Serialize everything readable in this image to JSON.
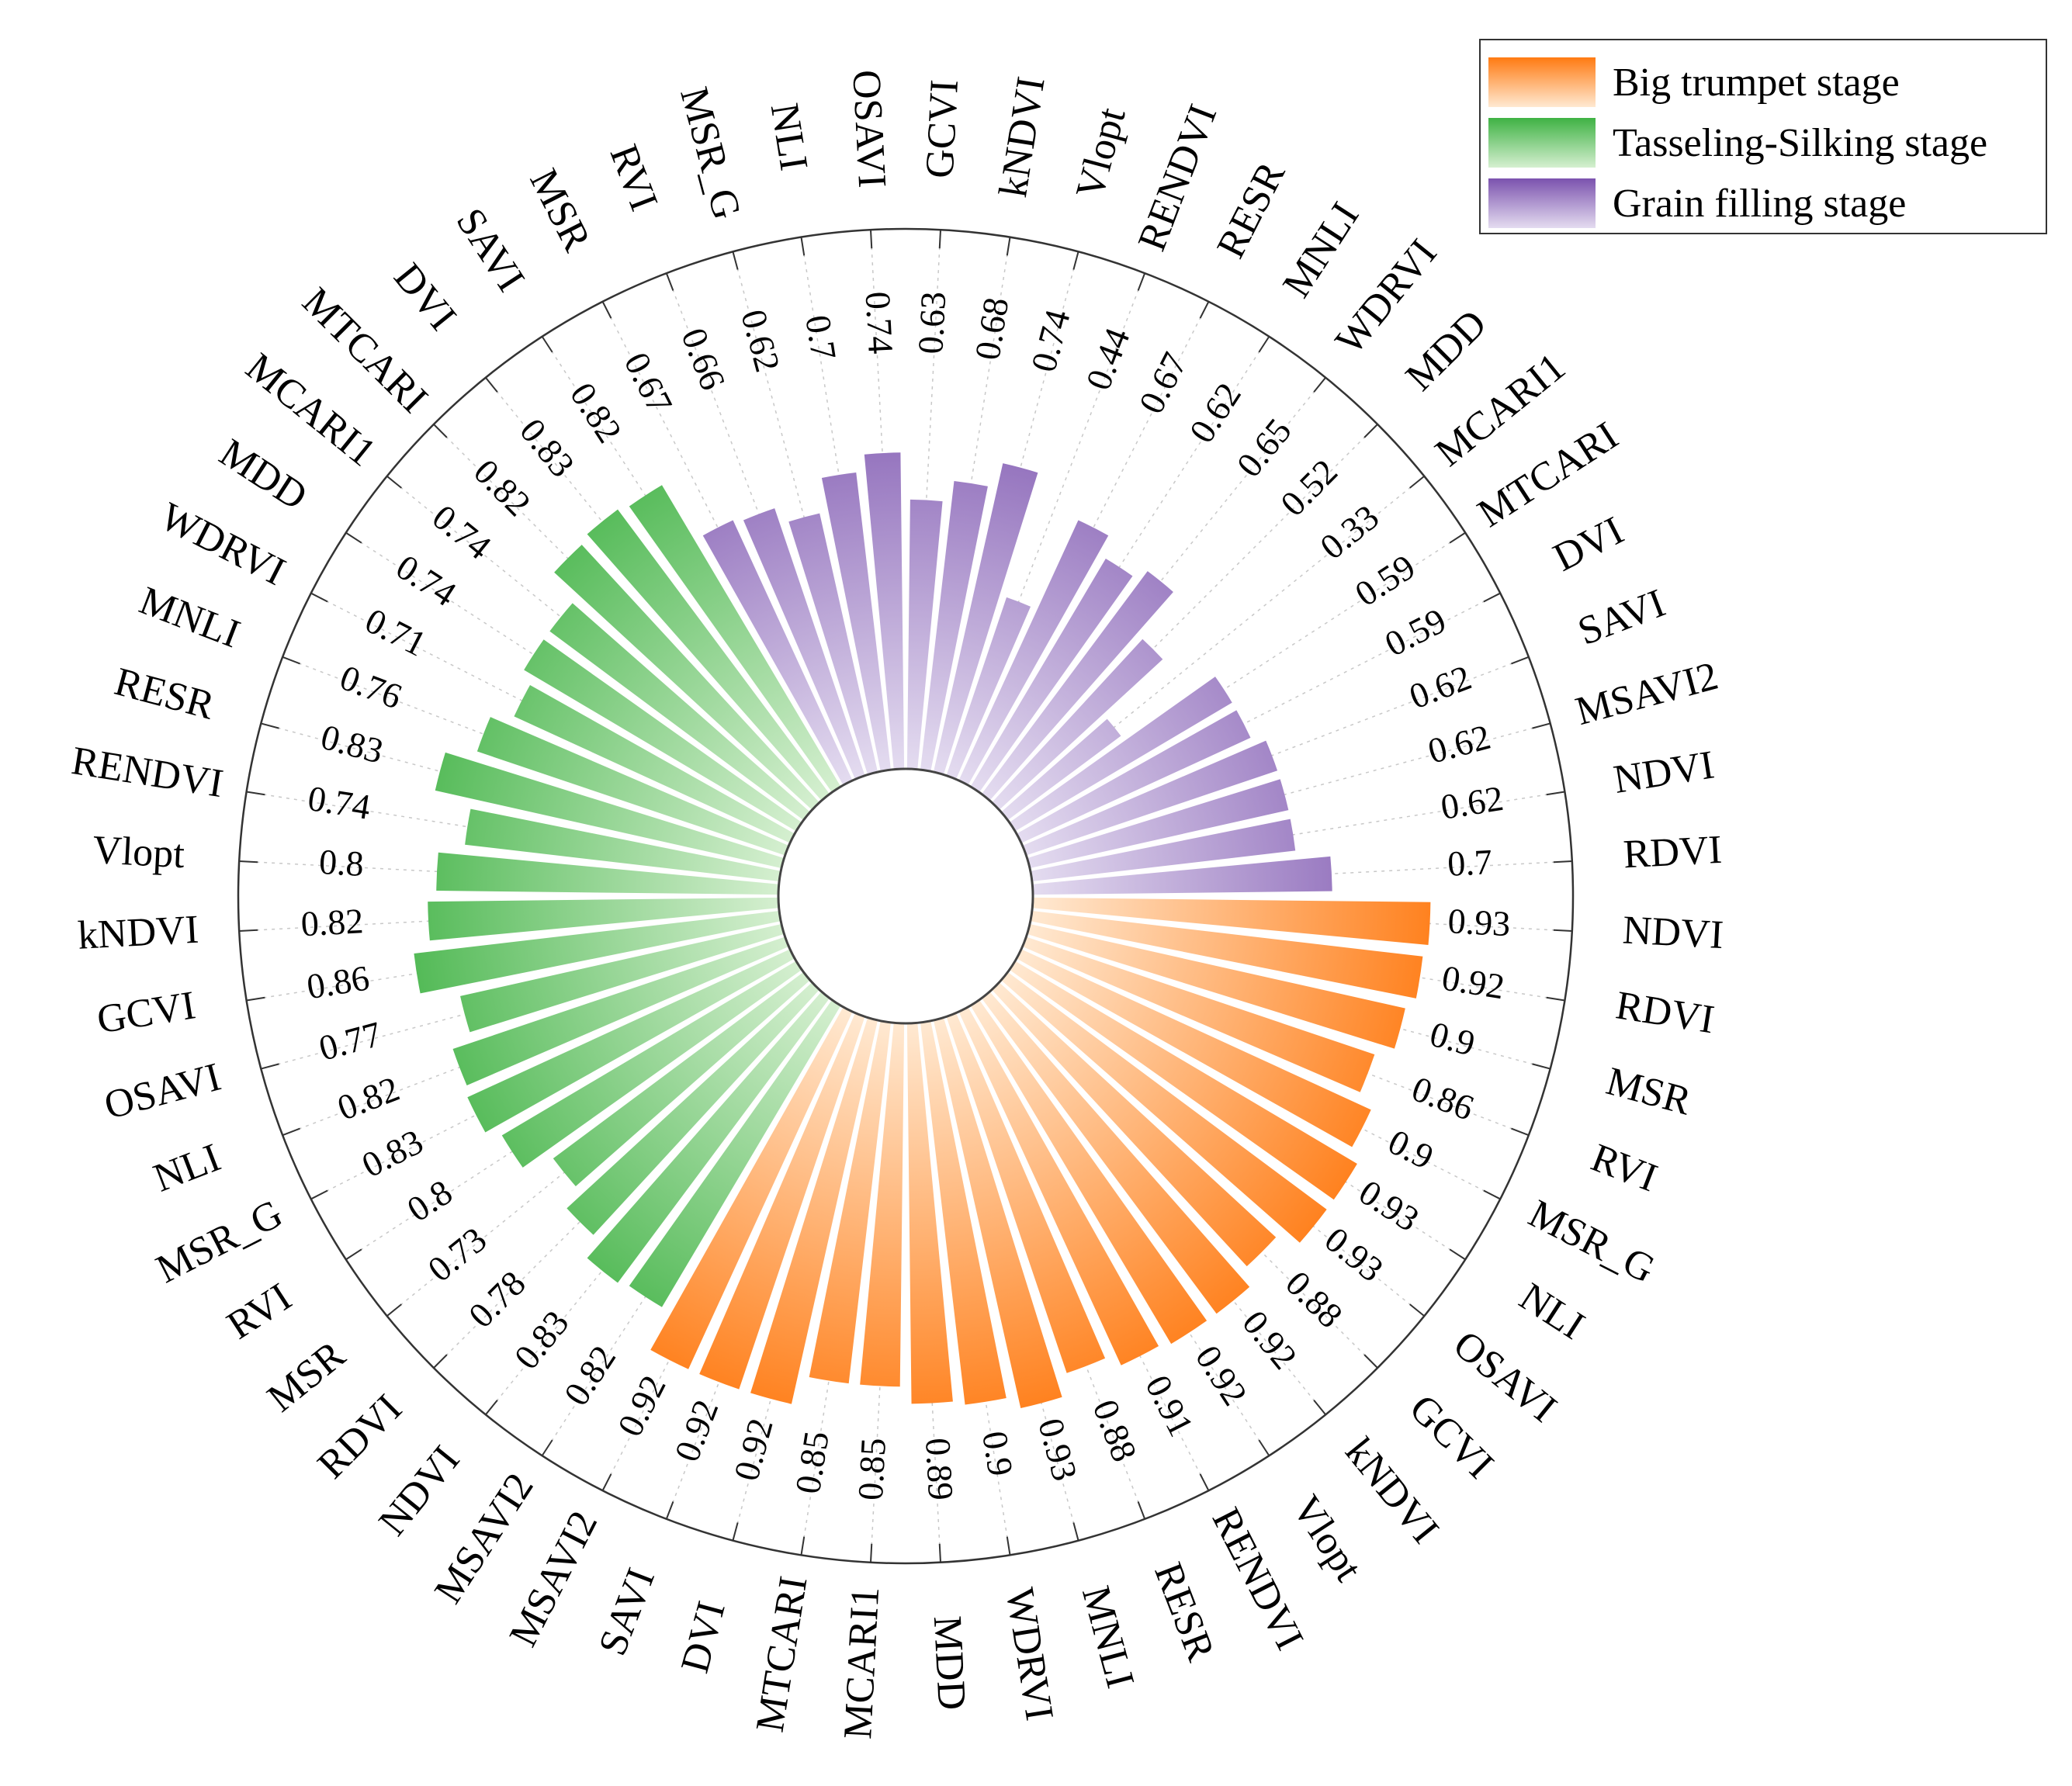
{
  "chart_data": {
    "type": "radial-bar",
    "title": "",
    "ylim": [
      0,
      1
    ],
    "legend_position": "top-right",
    "series": [
      {
        "name": "Big trumpet stage",
        "color_dark": "#FF7A12",
        "color_light": "#FFE9D2",
        "categories": [
          "NDVI",
          "RDVI",
          "MSR",
          "RVI",
          "MSR_G",
          "NLI",
          "OSAVI",
          "GCVI",
          "kNDVI",
          "Vlopt",
          "RENDVI",
          "RESR",
          "MNLI",
          "WDRVI",
          "MDD",
          "MCARI1",
          "MTCARI",
          "DVI",
          "SAVI",
          "MSAVI2"
        ],
        "values": [
          0.93,
          0.92,
          0.9,
          0.86,
          0.9,
          0.93,
          0.93,
          0.88,
          0.92,
          0.92,
          0.91,
          0.88,
          0.93,
          0.9,
          0.89,
          0.85,
          0.85,
          0.92,
          0.92,
          0.92
        ],
        "labels": [
          "0.93",
          "0.92",
          "0.9",
          "0.86",
          "0.9",
          "0.93",
          "0.93",
          "0.88",
          "0.92",
          "0.92",
          "0.91",
          "0.88",
          "0.93",
          "0.9",
          "0.89",
          "0.85",
          "0.85",
          "0.92",
          "0.92",
          "0.92"
        ]
      },
      {
        "name": "Tasseling-Silking stage",
        "color_dark": "#3FB244",
        "color_light": "#D5EFD0",
        "categories": [
          "MSAVI2",
          "NDVI",
          "RDVI",
          "MSR",
          "RVI",
          "MSR_G",
          "NLI",
          "OSAVI",
          "GCVI",
          "kNDVI",
          "Vlopt",
          "RENDVI",
          "RESR",
          "MNLI",
          "WDRVI",
          "MDD",
          "MCARI1",
          "MTCARI",
          "DVI",
          "SAVI"
        ],
        "values": [
          0.82,
          0.83,
          0.78,
          0.73,
          0.8,
          0.83,
          0.82,
          0.77,
          0.86,
          0.82,
          0.8,
          0.74,
          0.83,
          0.76,
          0.71,
          0.74,
          0.74,
          0.82,
          0.83,
          0.82
        ],
        "labels": [
          "0.82",
          "0.83",
          "0.78",
          "0.73",
          "0.8",
          "0.83",
          "0.82",
          "0.77",
          "0.86",
          "0.82",
          "0.8",
          "0.74",
          "0.83",
          "0.76",
          "0.71",
          "0.74",
          "0.74",
          "0.82",
          "0.83",
          "0.82"
        ]
      },
      {
        "name": "Grain filling stage",
        "color_dark": "#7B52AE",
        "color_light": "#E4DCF0",
        "categories": [
          "MSR",
          "RVI",
          "MSR_G",
          "NLI",
          "OSAVI",
          "GCVI",
          "kNDVI",
          "Vlopt",
          "RENDVI",
          "RESR",
          "MNLI",
          "WDRVI",
          "MDD",
          "MCARI1",
          "MTCARI",
          "DVI",
          "SAVI",
          "MSAVI2",
          "NDVI",
          "RDVI"
        ],
        "values": [
          0.67,
          0.66,
          0.62,
          0.7,
          0.74,
          0.63,
          0.68,
          0.74,
          0.44,
          0.67,
          0.62,
          0.65,
          0.52,
          0.33,
          0.59,
          0.59,
          0.62,
          0.62,
          0.62,
          0.7
        ],
        "labels": [
          "0.67",
          "0.66",
          "0.62",
          "0.7",
          "0.74",
          "0.63",
          "0.68",
          "0.74",
          "0.44",
          "0.67",
          "0.62",
          "0.65",
          "0.52",
          "0.33",
          "0.59",
          "0.59",
          "0.62",
          "0.62",
          "0.62",
          "0.7"
        ]
      }
    ]
  },
  "legend": {
    "items": [
      {
        "label": "Big trumpet stage"
      },
      {
        "label": "Tasseling-Silking stage"
      },
      {
        "label": "Grain filling stage"
      }
    ]
  }
}
